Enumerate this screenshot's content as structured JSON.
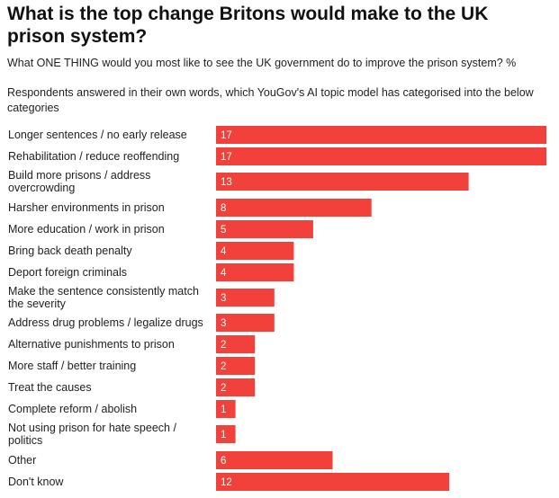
{
  "header": {
    "title": "What is the top change Britons would make to the UK prison system?",
    "subtitle": "What ONE THING would you most like to see the UK government do to improve the prison system? %",
    "note": "Respondents answered in their own words, which YouGov's AI topic model has categorised into the below categories"
  },
  "colors": {
    "bar": "#f2413a",
    "bar_text": "#ffffff",
    "label_text": "#222222"
  },
  "chart_data": {
    "type": "bar",
    "orientation": "horizontal",
    "categories": [
      "Longer sentences / no early release",
      "Rehabilitation / reduce reoffending",
      "Build more prisons / address overcrowding",
      "Harsher environments in prison",
      "More education / work in prison",
      "Bring back death penalty",
      "Deport foreign criminals",
      "Make the sentence consistently match the severity",
      "Address drug problems / legalize drugs",
      "Alternative punishments to prison",
      "More staff / better training",
      "Treat the causes",
      "Complete reform / abolish",
      "Not using prison for hate speech / politics",
      "Other",
      "Don't know"
    ],
    "category_lines": [
      [
        "Longer sentences / no early release"
      ],
      [
        "Rehabilitation / reduce reoffending"
      ],
      [
        "Build more prisons / address",
        "overcrowding"
      ],
      [
        "Harsher environments in prison"
      ],
      [
        "More education / work in prison"
      ],
      [
        "Bring back death penalty"
      ],
      [
        "Deport foreign criminals"
      ],
      [
        "Make the sentence consistently match",
        "the severity"
      ],
      [
        "Address drug problems / legalize drugs"
      ],
      [
        "Alternative punishments to prison"
      ],
      [
        "More staff / better training"
      ],
      [
        "Treat the causes"
      ],
      [
        "Complete reform / abolish"
      ],
      [
        "Not using prison for hate speech /",
        "politics"
      ],
      [
        "Other"
      ],
      [
        "Don't know"
      ]
    ],
    "values": [
      17,
      17,
      13,
      8,
      5,
      4,
      4,
      3,
      3,
      2,
      2,
      2,
      1,
      1,
      6,
      12
    ],
    "xlim": [
      0,
      17
    ],
    "grid": false,
    "data_labels": "inside-left"
  }
}
